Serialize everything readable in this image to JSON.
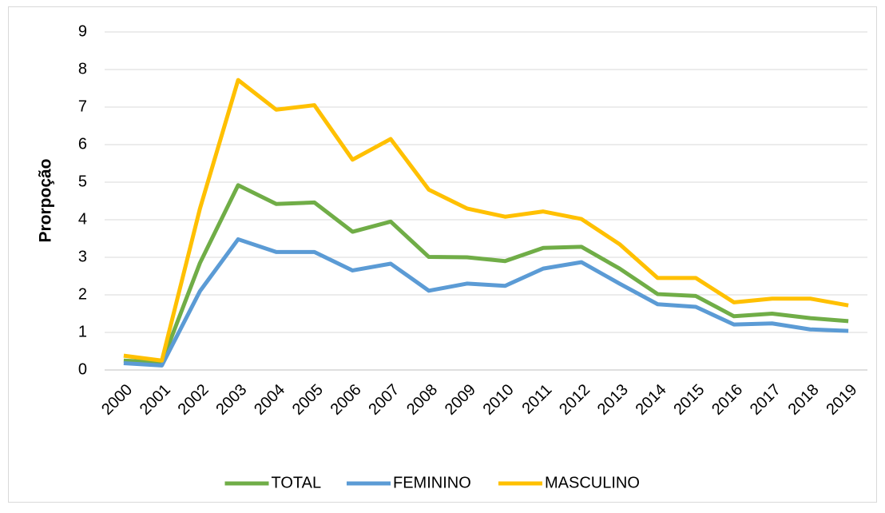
{
  "chart_data": {
    "type": "line",
    "y_label": "Prorpoção",
    "categories": [
      "2000",
      "2001",
      "2002",
      "2003",
      "2004",
      "2005",
      "2006",
      "2007",
      "2008",
      "2009",
      "2010",
      "2011",
      "2012",
      "2013",
      "2014",
      "2015",
      "2016",
      "2017",
      "2018",
      "2019"
    ],
    "series": [
      {
        "name": "TOTAL",
        "color": "#70ad47",
        "values": [
          0.25,
          0.2,
          2.85,
          4.92,
          4.42,
          4.46,
          3.68,
          3.95,
          3.01,
          3.0,
          2.9,
          3.25,
          3.28,
          2.7,
          2.02,
          1.97,
          1.43,
          1.5,
          1.38,
          1.3
        ]
      },
      {
        "name": "FEMININO",
        "color": "#5b9bd5",
        "values": [
          0.18,
          0.12,
          2.1,
          3.48,
          3.14,
          3.14,
          2.65,
          2.83,
          2.11,
          2.3,
          2.24,
          2.7,
          2.87,
          2.3,
          1.75,
          1.68,
          1.21,
          1.24,
          1.08,
          1.04
        ]
      },
      {
        "name": "MASCULINO",
        "color": "#ffc000",
        "values": [
          0.38,
          0.25,
          4.3,
          7.72,
          6.93,
          7.05,
          5.6,
          6.15,
          4.8,
          4.3,
          4.08,
          4.22,
          4.02,
          3.35,
          2.45,
          2.45,
          1.8,
          1.9,
          1.9,
          1.72
        ]
      }
    ],
    "ylim": [
      0,
      9
    ],
    "yticks": [
      0,
      1,
      2,
      3,
      4,
      5,
      6,
      7,
      8,
      9
    ],
    "grid": true,
    "legend": "bottom"
  }
}
